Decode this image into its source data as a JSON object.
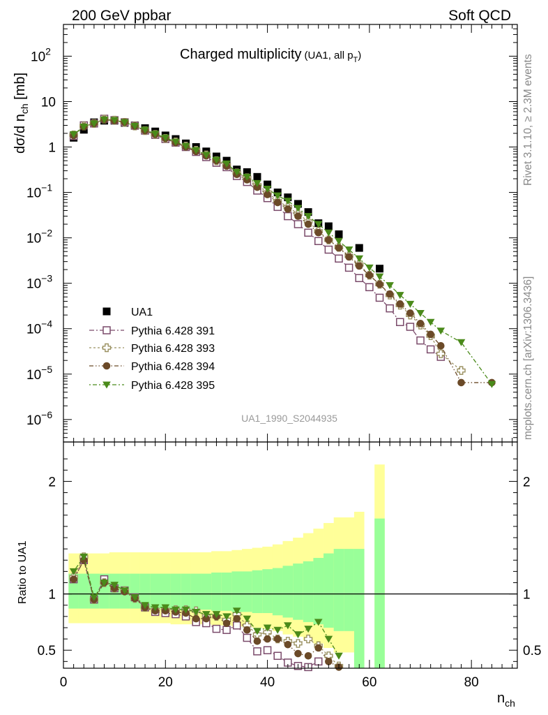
{
  "header": {
    "left": "200 GeV ppbar",
    "right": "Soft QCD"
  },
  "title_main": "Charged multiplicity",
  "title_sub_prefix": "(UA1, all p",
  "title_sub_subscript": "T",
  "title_sub_suffix": ")",
  "ylabel_prefix": "dσ/d n",
  "ylabel_subscript": "ch",
  "ylabel_suffix": " [mb]",
  "ratio_ylabel": "Ratio to UA1",
  "xlabel_main": "n",
  "xlabel_subscript": "ch",
  "analysis_tag": "UA1_1990_S2044935",
  "side_text_top": "Rivet 3.1.10, ≥ 2.3M events",
  "side_text_bottom": "mcplots.cern.ch [arXiv:1306.3436]",
  "chart_data": {
    "type": "scatter",
    "xlim": [
      0,
      89
    ],
    "ylim": [
      3.2e-07,
      500
    ],
    "ylog": true,
    "x_ticks": [
      "0",
      "20",
      "40",
      "60",
      "80"
    ],
    "y_ticks": [
      {
        "v": 1e-06,
        "base": "10",
        "exp": "−6"
      },
      {
        "v": 1e-05,
        "base": "10",
        "exp": "−5"
      },
      {
        "v": 0.0001,
        "base": "10",
        "exp": "−4"
      },
      {
        "v": 0.001,
        "base": "10",
        "exp": "−3"
      },
      {
        "v": 0.01,
        "base": "10",
        "exp": "−2"
      },
      {
        "v": 0.1,
        "base": "10",
        "exp": "−1"
      },
      {
        "v": 1,
        "base": "1",
        "exp": ""
      },
      {
        "v": 10,
        "base": "10",
        "exp": ""
      },
      {
        "v": 100,
        "base": "10",
        "exp": "2"
      }
    ],
    "ratio_ylim": [
      0.34,
      2.35
    ],
    "ratio_y_ticks": [
      "0.5",
      "1",
      "2"
    ],
    "legend_position": "lower-left",
    "series": [
      {
        "name": "UA1",
        "color": "#000000",
        "marker": "filled-square",
        "x": [
          2,
          4,
          6,
          8,
          10,
          12,
          14,
          16,
          18,
          20,
          22,
          24,
          26,
          28,
          30,
          32,
          34,
          36,
          38,
          40,
          42,
          44,
          46,
          48,
          50,
          52,
          54,
          58,
          62
        ],
        "y": [
          1.6,
          2.4,
          3.5,
          3.8,
          3.8,
          3.4,
          3.0,
          2.6,
          2.2,
          1.8,
          1.5,
          1.2,
          1.0,
          0.8,
          0.62,
          0.5,
          0.32,
          0.28,
          0.22,
          0.15,
          0.1,
          0.078,
          0.056,
          0.037,
          0.021,
          0.018,
          0.012,
          0.006,
          0.0021
        ]
      },
      {
        "name": "Pythia 6.428 391",
        "color": "#7a4a6a",
        "marker": "open-square",
        "x": [
          2,
          4,
          6,
          8,
          10,
          12,
          14,
          16,
          18,
          20,
          22,
          24,
          26,
          28,
          30,
          32,
          34,
          36,
          38,
          40,
          42,
          44,
          46,
          48,
          50,
          52,
          54,
          56,
          58,
          60,
          62,
          64,
          66,
          68,
          70,
          72,
          74
        ],
        "y": [
          1.75,
          3.0,
          3.3,
          4.2,
          3.9,
          3.5,
          2.95,
          2.3,
          1.85,
          1.5,
          1.25,
          1.0,
          0.78,
          0.6,
          0.45,
          0.36,
          0.23,
          0.17,
          0.11,
          0.075,
          0.048,
          0.03,
          0.02,
          0.013,
          0.0085,
          0.0055,
          0.0035,
          0.0022,
          0.0013,
          0.00082,
          0.00048,
          0.00028,
          0.00014,
          0.00011,
          5.5e-05,
          3.5e-05,
          2.4e-05
        ]
      },
      {
        "name": "Pythia 6.428 393",
        "color": "#9a9060",
        "marker": "open-cross",
        "x": [
          2,
          4,
          6,
          8,
          10,
          12,
          14,
          16,
          18,
          20,
          22,
          24,
          26,
          28,
          30,
          32,
          34,
          36,
          38,
          40,
          42,
          44,
          46,
          48,
          50,
          52,
          54,
          56,
          58,
          60,
          62,
          64,
          66,
          68,
          70,
          72,
          74,
          78
        ],
        "y": [
          1.85,
          2.9,
          3.3,
          4.1,
          3.9,
          3.5,
          2.9,
          2.3,
          1.9,
          1.55,
          1.3,
          1.05,
          0.85,
          0.67,
          0.5,
          0.4,
          0.27,
          0.21,
          0.145,
          0.1,
          0.065,
          0.048,
          0.034,
          0.023,
          0.014,
          0.009,
          0.0062,
          0.004,
          0.0026,
          0.0015,
          0.00095,
          0.00055,
          0.00033,
          0.0002,
          0.00012,
          7e-05,
          2.8e-05,
          1.2e-05
        ]
      },
      {
        "name": "Pythia 6.428 394",
        "color": "#6b4a28",
        "marker": "filled-circle",
        "x": [
          2,
          4,
          6,
          8,
          10,
          12,
          14,
          16,
          18,
          20,
          22,
          24,
          26,
          28,
          30,
          32,
          34,
          36,
          38,
          40,
          42,
          44,
          46,
          48,
          50,
          52,
          54,
          56,
          58,
          60,
          62,
          64,
          66,
          68,
          70,
          72,
          74,
          78,
          84
        ],
        "y": [
          1.8,
          2.8,
          3.3,
          4.0,
          3.8,
          3.5,
          2.9,
          2.3,
          1.9,
          1.55,
          1.25,
          1.0,
          0.8,
          0.64,
          0.5,
          0.38,
          0.25,
          0.19,
          0.13,
          0.09,
          0.06,
          0.043,
          0.03,
          0.02,
          0.013,
          0.009,
          0.006,
          0.0038,
          0.0024,
          0.0015,
          0.00095,
          0.00058,
          0.00035,
          0.00022,
          0.00013,
          7.5e-05,
          4.2e-05,
          6.5e-06,
          6.5e-06
        ]
      },
      {
        "name": "Pythia 6.428 395",
        "color": "#4a8a1a",
        "marker": "filled-triangle-down",
        "x": [
          2,
          4,
          6,
          8,
          10,
          12,
          14,
          16,
          18,
          20,
          22,
          24,
          26,
          28,
          30,
          32,
          34,
          36,
          38,
          40,
          42,
          44,
          46,
          48,
          50,
          52,
          54,
          56,
          58,
          60,
          62,
          64,
          66,
          68,
          70,
          72,
          74,
          78,
          84
        ],
        "y": [
          1.9,
          2.8,
          3.3,
          4.0,
          3.9,
          3.5,
          2.9,
          2.4,
          1.95,
          1.6,
          1.3,
          1.05,
          0.85,
          0.67,
          0.52,
          0.43,
          0.28,
          0.22,
          0.16,
          0.12,
          0.085,
          0.065,
          0.045,
          0.03,
          0.02,
          0.013,
          0.0085,
          0.0055,
          0.0035,
          0.0022,
          0.0014,
          0.0009,
          0.00055,
          0.00035,
          0.00022,
          0.00014,
          9e-05,
          5e-05,
          6e-06
        ]
      }
    ],
    "ratio": {
      "band_x": [
        1,
        3,
        5,
        7,
        9,
        11,
        13,
        15,
        17,
        19,
        21,
        23,
        25,
        27,
        29,
        31,
        33,
        35,
        37,
        39,
        41,
        43,
        45,
        47,
        49,
        51,
        53,
        55
      ],
      "band_inner_lo": [
        0.87,
        0.87,
        0.87,
        0.87,
        0.87,
        0.87,
        0.87,
        0.87,
        0.87,
        0.87,
        0.86,
        0.86,
        0.86,
        0.86,
        0.85,
        0.85,
        0.84,
        0.84,
        0.83,
        0.83,
        0.81,
        0.79,
        0.77,
        0.75,
        0.73,
        0.7,
        0.67,
        0.67
      ],
      "band_inner_hi": [
        1.18,
        1.18,
        1.18,
        1.18,
        1.18,
        1.18,
        1.18,
        1.18,
        1.18,
        1.18,
        1.18,
        1.18,
        1.18,
        1.18,
        1.19,
        1.19,
        1.2,
        1.2,
        1.21,
        1.22,
        1.23,
        1.25,
        1.27,
        1.29,
        1.32,
        1.36,
        1.4,
        1.4
      ],
      "band_outer_lo": [
        0.74,
        0.74,
        0.74,
        0.74,
        0.74,
        0.74,
        0.74,
        0.74,
        0.74,
        0.74,
        0.73,
        0.73,
        0.73,
        0.73,
        0.72,
        0.72,
        0.71,
        0.71,
        0.7,
        0.69,
        0.67,
        0.64,
        0.62,
        0.59,
        0.56,
        0.52,
        0.48,
        0.48
      ],
      "band_outer_hi": [
        1.36,
        1.36,
        1.36,
        1.36,
        1.37,
        1.37,
        1.37,
        1.37,
        1.37,
        1.37,
        1.37,
        1.37,
        1.37,
        1.37,
        1.38,
        1.38,
        1.39,
        1.4,
        1.41,
        1.42,
        1.44,
        1.47,
        1.5,
        1.54,
        1.58,
        1.63,
        1.68,
        1.68
      ],
      "extra_bands": [
        {
          "x0": 57,
          "x1": 59,
          "inner_lo": 0.34,
          "inner_hi": 1.4,
          "outer_lo": 0.34,
          "outer_hi": 1.73
        },
        {
          "x0": 61,
          "x1": 63,
          "inner_lo": 0.34,
          "inner_hi": 1.67,
          "outer_lo": 0.34,
          "outer_hi": 2.15
        }
      ],
      "series": [
        {
          "x": [
            2,
            4,
            6,
            8,
            10,
            12,
            14,
            16,
            18,
            20,
            22,
            24,
            26,
            28,
            30,
            32,
            34,
            36,
            38,
            40,
            42,
            44,
            46,
            48,
            50
          ],
          "y": [
            1.13,
            1.3,
            0.95,
            1.13,
            1.05,
            1.03,
            0.97,
            0.88,
            0.84,
            0.83,
            0.82,
            0.8,
            0.75,
            0.74,
            0.69,
            0.68,
            0.72,
            0.61,
            0.49,
            0.5,
            0.45,
            0.39,
            0.36,
            0.35,
            0.4
          ]
        },
        {
          "x": [
            2,
            4,
            6,
            8,
            10,
            12,
            14,
            16,
            18,
            20,
            22,
            24,
            26,
            28,
            30,
            32,
            34,
            36,
            38,
            40,
            42,
            44,
            46,
            48,
            50,
            52,
            54
          ],
          "y": [
            1.15,
            1.33,
            0.95,
            1.1,
            1.05,
            1.03,
            0.96,
            0.88,
            0.86,
            0.86,
            0.86,
            0.86,
            0.85,
            0.8,
            0.8,
            0.77,
            0.82,
            0.72,
            0.64,
            0.66,
            0.6,
            0.58,
            0.56,
            0.6,
            0.54,
            0.45,
            0.36
          ]
        },
        {
          "x": [
            2,
            4,
            6,
            8,
            10,
            12,
            14,
            16,
            18,
            20,
            22,
            24,
            26,
            28,
            30,
            32,
            34,
            36,
            38,
            40,
            42,
            44,
            46,
            48,
            50,
            52,
            54
          ],
          "y": [
            1.13,
            1.3,
            0.95,
            1.1,
            1.05,
            1.02,
            0.96,
            0.88,
            0.85,
            0.85,
            0.84,
            0.83,
            0.78,
            0.78,
            0.8,
            0.74,
            0.78,
            0.68,
            0.58,
            0.6,
            0.6,
            0.55,
            0.47,
            0.45,
            0.52,
            0.4,
            0.35
          ]
        },
        {
          "x": [
            2,
            4,
            6,
            8,
            10,
            12,
            14,
            16,
            18,
            20,
            22,
            24,
            26,
            28,
            30,
            32,
            34,
            36,
            38,
            40,
            42,
            44,
            46,
            48,
            50,
            52,
            54
          ],
          "y": [
            1.2,
            1.33,
            0.97,
            1.1,
            1.08,
            1.03,
            0.97,
            0.9,
            0.88,
            0.88,
            0.86,
            0.86,
            0.84,
            0.82,
            0.82,
            0.8,
            0.85,
            0.78,
            0.67,
            0.7,
            0.68,
            0.72,
            0.64,
            0.69,
            0.75,
            0.6,
            0.45
          ]
        }
      ]
    }
  }
}
